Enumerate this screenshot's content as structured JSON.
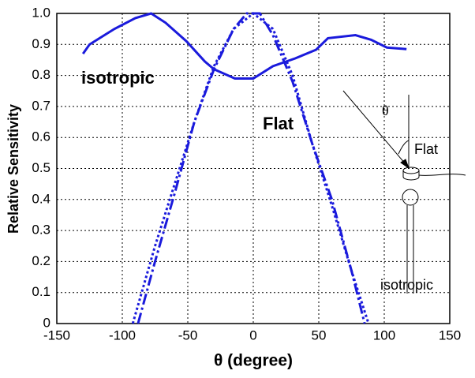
{
  "chart_data": {
    "type": "line",
    "x_label": "θ (degree)",
    "y_label": "Relative Sensitivity",
    "xlim": [
      -150,
      150
    ],
    "xticks": [
      -150,
      -100,
      -50,
      0,
      50,
      100,
      150
    ],
    "ylim": [
      0,
      1
    ],
    "yticks": [
      0,
      0.1,
      0.2,
      0.3,
      0.4,
      0.5,
      0.6,
      0.7,
      0.8,
      0.9,
      {
        "value": 1,
        "label": "1.0"
      }
    ],
    "grid": true,
    "series": [
      {
        "color": "#1a1adc",
        "style": "solid",
        "x": [
          -130,
          -125,
          -106,
          -90,
          -78,
          -67,
          -51,
          -37,
          -30,
          -14,
          0,
          15,
          32,
          48,
          57,
          78,
          90,
          102,
          117
        ],
        "values": [
          0.87,
          0.9,
          0.95,
          0.985,
          1.0,
          0.97,
          0.91,
          0.845,
          0.82,
          0.79,
          0.79,
          0.83,
          0.855,
          0.883,
          0.92,
          0.93,
          0.915,
          0.89,
          0.885
        ]
      },
      {
        "color": "#1a1adc",
        "style": "dashdot",
        "x": [
          -88,
          -75,
          -60,
          -45,
          -30,
          -15,
          -5,
          0,
          5,
          15,
          30,
          45,
          60,
          75,
          85
        ],
        "values": [
          0,
          0.2,
          0.42,
          0.65,
          0.82,
          0.95,
          1.0,
          1.0,
          1.0,
          0.93,
          0.78,
          0.58,
          0.4,
          0.17,
          0
        ]
      },
      {
        "color": "#1a1adc",
        "style": "dotted",
        "x": [
          -92,
          -75,
          -60,
          -45,
          -30,
          -15,
          0,
          15,
          30,
          45,
          60,
          75,
          88
        ],
        "values": [
          0,
          0.25,
          0.45,
          0.65,
          0.83,
          0.95,
          1.0,
          0.95,
          0.8,
          0.58,
          0.38,
          0.17,
          0
        ]
      }
    ],
    "annotations": [
      "isotropic",
      "Flat",
      "θ",
      "Flat",
      "isotropic"
    ]
  }
}
